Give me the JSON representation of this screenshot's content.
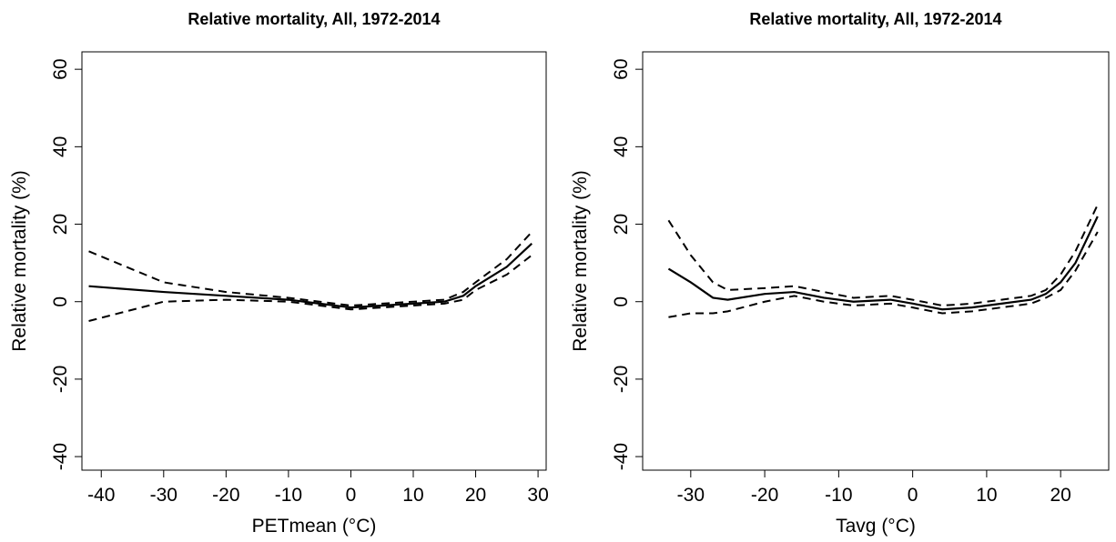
{
  "chart_data": [
    {
      "type": "line",
      "title": "Relative mortality, All, 1972-2014",
      "xlabel": "PETmean (°C)",
      "ylabel": "Relative mortality (%)",
      "xlim": [
        -43.1,
        31.3
      ],
      "ylim": [
        -43.5,
        64.5
      ],
      "xticks": [
        -40,
        -30,
        -20,
        -10,
        0,
        10,
        20,
        30
      ],
      "yticks": [
        -40,
        -20,
        0,
        20,
        40,
        60
      ],
      "series": [
        {
          "color": "#000000",
          "dashed": false,
          "x": [
            -42,
            -30,
            -20,
            -10,
            -5,
            0,
            5,
            10,
            15,
            18,
            20,
            25,
            29
          ],
          "values": [
            4,
            2.5,
            1.5,
            0.5,
            -0.5,
            -1.5,
            -1,
            -0.5,
            0,
            1.5,
            4,
            9,
            15
          ]
        },
        {
          "color": "#000000",
          "dashed": true,
          "x": [
            -42,
            -30,
            -20,
            -10,
            -5,
            0,
            5,
            10,
            15,
            18,
            20,
            25,
            29
          ],
          "values": [
            13,
            5,
            2.5,
            1,
            0,
            -1,
            -0.5,
            0,
            0.5,
            2.5,
            5,
            11,
            18
          ]
        },
        {
          "color": "#000000",
          "dashed": true,
          "x": [
            -42,
            -30,
            -20,
            -10,
            -5,
            0,
            5,
            10,
            15,
            18,
            20,
            25,
            29
          ],
          "values": [
            -5,
            0,
            0.5,
            0,
            -1,
            -2,
            -1.5,
            -1,
            -0.5,
            0.5,
            3,
            7,
            12
          ]
        }
      ]
    },
    {
      "type": "line",
      "title": "Relative mortality, All, 1972-2014",
      "xlabel": "Tavg (°C)",
      "ylabel": "Relative mortality (%)",
      "xlim": [
        -36.5,
        26.5
      ],
      "ylim": [
        -43.5,
        64.5
      ],
      "xticks": [
        -30,
        -20,
        -10,
        0,
        10,
        20
      ],
      "yticks": [
        -40,
        -20,
        0,
        20,
        40,
        60
      ],
      "series": [
        {
          "color": "#000000",
          "dashed": false,
          "x": [
            -33,
            -30,
            -27,
            -25,
            -20,
            -16,
            -12,
            -8,
            -3,
            0,
            4,
            8,
            12,
            16,
            18,
            20,
            22,
            25
          ],
          "values": [
            8.5,
            5,
            1,
            0.5,
            2,
            2.5,
            1,
            0,
            0.5,
            -0.5,
            -2,
            -1.5,
            -0.5,
            0.5,
            2,
            5,
            10,
            22
          ]
        },
        {
          "color": "#000000",
          "dashed": true,
          "x": [
            -33,
            -30,
            -27,
            -25,
            -20,
            -16,
            -12,
            -8,
            -3,
            0,
            4,
            8,
            12,
            16,
            18,
            20,
            22,
            25
          ],
          "values": [
            21,
            12,
            5,
            3,
            3.5,
            4,
            2.5,
            1,
            1.5,
            0.5,
            -1,
            -0.5,
            0.5,
            1.5,
            3,
            7,
            13,
            25
          ]
        },
        {
          "color": "#000000",
          "dashed": true,
          "x": [
            -33,
            -30,
            -27,
            -25,
            -20,
            -16,
            -12,
            -8,
            -3,
            0,
            4,
            8,
            12,
            16,
            18,
            20,
            22,
            25
          ],
          "values": [
            -4,
            -3,
            -3,
            -2.5,
            0,
            1.5,
            0,
            -1,
            -0.5,
            -1.5,
            -3,
            -2.5,
            -1.5,
            -0.5,
            1,
            3,
            8,
            18
          ]
        }
      ]
    }
  ]
}
